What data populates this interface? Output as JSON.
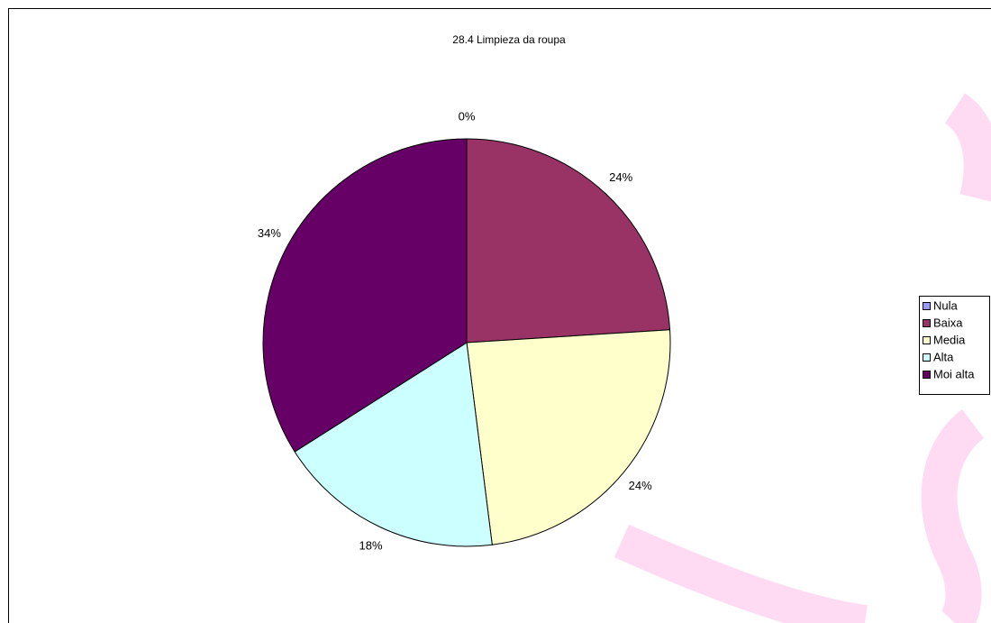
{
  "chart_data": {
    "type": "pie",
    "title": "28.4 Limpieza da roupa",
    "categories": [
      "Nula",
      "Baixa",
      "Media",
      "Alta",
      "Moi alta"
    ],
    "values": [
      0,
      24,
      24,
      18,
      34
    ],
    "value_labels": [
      "0%",
      "24%",
      "24%",
      "18%",
      "34%"
    ],
    "colors": [
      "#9999ff",
      "#993366",
      "#ffffcc",
      "#ccffff",
      "#660066"
    ],
    "legend": "right"
  }
}
